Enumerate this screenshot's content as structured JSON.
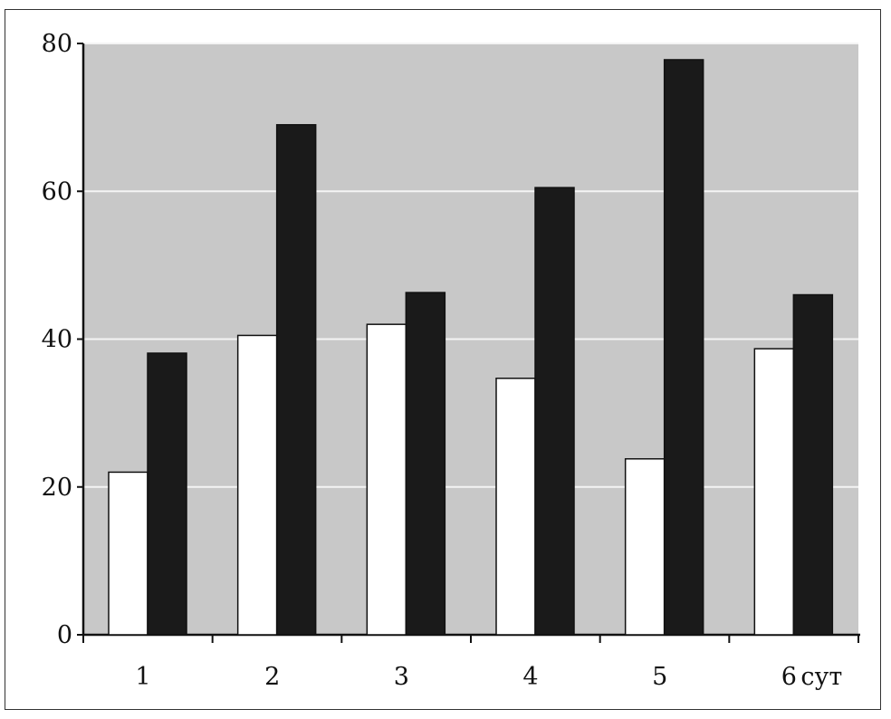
{
  "chart_data": {
    "type": "bar",
    "categories": [
      "1",
      "2",
      "3",
      "4",
      "5",
      "6"
    ],
    "x_unit_label": "сут",
    "series": [
      {
        "values": [
          22.0,
          40.5,
          42.0,
          34.7,
          23.8,
          38.7
        ],
        "color": "#ffffff"
      },
      {
        "values": [
          38.1,
          69.0,
          46.3,
          60.5,
          77.8,
          46.0
        ],
        "color": "#1a1a1a"
      }
    ],
    "yticks": [
      0,
      20,
      40,
      60,
      80
    ],
    "ylim": [
      0,
      80
    ],
    "grid": true,
    "background": "#c8c8c8",
    "title": "",
    "xlabel": "",
    "ylabel": ""
  }
}
